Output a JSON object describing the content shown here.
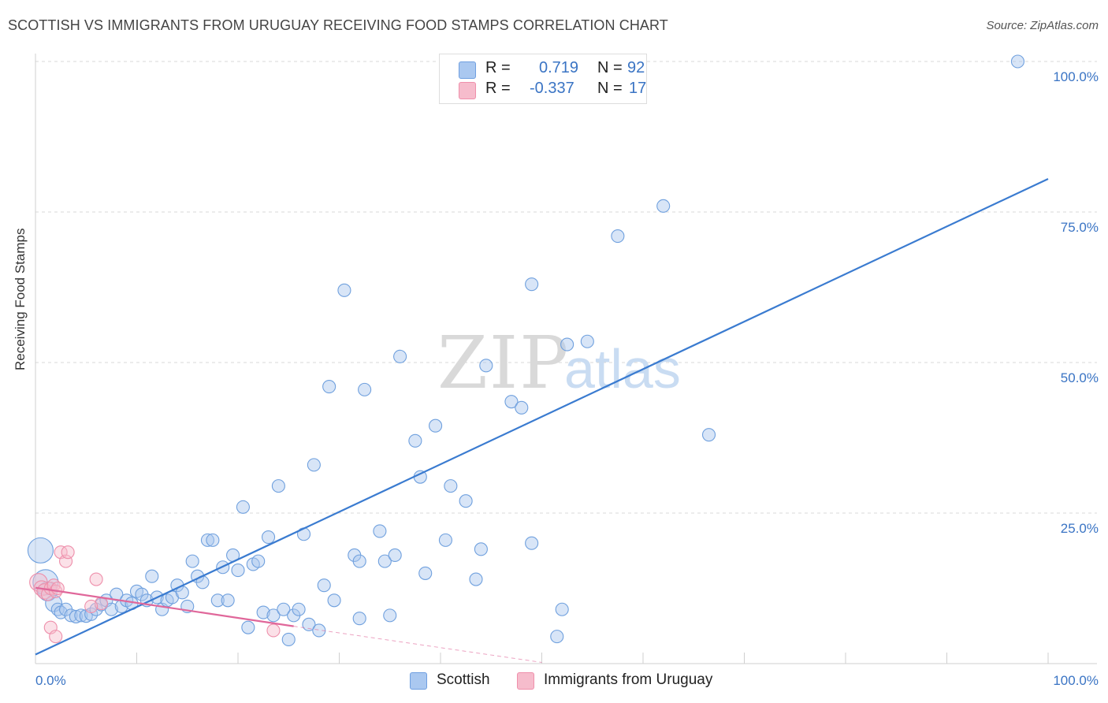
{
  "header": {
    "title": "SCOTTISH VS IMMIGRANTS FROM URUGUAY RECEIVING FOOD STAMPS CORRELATION CHART",
    "source": "Source: ZipAtlas.com"
  },
  "watermark": {
    "zip": "ZIP",
    "atlas": "atlas"
  },
  "legend": {
    "rows": [
      {
        "r_label": "R =",
        "r_value": "0.719",
        "n_label": "N =",
        "n_value": "92",
        "color": "#aac8f0",
        "border": "#6f9fe0"
      },
      {
        "r_label": "R =",
        "r_value": "-0.337",
        "n_label": "N =",
        "n_value": "17",
        "color": "#f6bccc",
        "border": "#ef8fab"
      }
    ]
  },
  "bottom_legend": {
    "series1": "Scottish",
    "series2": "Immigrants from Uruguay"
  },
  "chart_data": {
    "type": "scatter",
    "title": "SCOTTISH VS IMMIGRANTS FROM URUGUAY RECEIVING FOOD STAMPS CORRELATION CHART",
    "xlabel": "",
    "ylabel": "Receiving Food Stamps",
    "xlim": [
      0,
      100
    ],
    "ylim": [
      0,
      100
    ],
    "x_tick_labels": [
      "0.0%",
      "100.0%"
    ],
    "y_tick_labels": [
      "25.0%",
      "50.0%",
      "75.0%",
      "100.0%"
    ],
    "y_ticks": [
      25,
      50,
      75,
      100
    ],
    "grid": true,
    "series": [
      {
        "name": "Scottish",
        "color": "#6fa0de",
        "fill": "#a9c6ee",
        "trendline": {
          "x": [
            0,
            100
          ],
          "y": [
            1.5,
            80.5
          ],
          "color": "#3a7bd0"
        },
        "points": [
          [
            0.5,
            18.8,
            2
          ],
          [
            1.0,
            13.5,
            2
          ],
          [
            1.2,
            12.0,
            1.5
          ],
          [
            1.8,
            10.0,
            1.3
          ],
          [
            2.2,
            9.0,
            1
          ],
          [
            2.5,
            8.5,
            1
          ],
          [
            3.0,
            9.0,
            1
          ],
          [
            3.5,
            8.0,
            1
          ],
          [
            4.0,
            7.8,
            1
          ],
          [
            4.5,
            8.0,
            1
          ],
          [
            5.0,
            7.9,
            1
          ],
          [
            5.5,
            8.2,
            1
          ],
          [
            6.0,
            9.0,
            1
          ],
          [
            6.5,
            9.8,
            1
          ],
          [
            7.0,
            10.5,
            1
          ],
          [
            7.5,
            9.0,
            1
          ],
          [
            8.0,
            11.5,
            1
          ],
          [
            8.5,
            9.5,
            1
          ],
          [
            9.0,
            10.5,
            1
          ],
          [
            9.5,
            10.0,
            1
          ],
          [
            10.0,
            12.0,
            1
          ],
          [
            10.5,
            11.5,
            1
          ],
          [
            11.0,
            10.5,
            1
          ],
          [
            11.5,
            14.5,
            1
          ],
          [
            12.0,
            11.0,
            1
          ],
          [
            12.5,
            9.0,
            1
          ],
          [
            13.0,
            10.5,
            1
          ],
          [
            13.5,
            11.0,
            1
          ],
          [
            14.0,
            13.0,
            1
          ],
          [
            14.5,
            11.8,
            1
          ],
          [
            15.0,
            9.5,
            1
          ],
          [
            15.5,
            17.0,
            1
          ],
          [
            16.0,
            14.5,
            1
          ],
          [
            16.5,
            13.5,
            1
          ],
          [
            17.0,
            20.5,
            1
          ],
          [
            17.5,
            20.5,
            1
          ],
          [
            18.0,
            10.5,
            1
          ],
          [
            18.5,
            16.0,
            1
          ],
          [
            19.0,
            10.5,
            1
          ],
          [
            19.5,
            18.0,
            1
          ],
          [
            20.0,
            15.5,
            1
          ],
          [
            20.5,
            26.0,
            1
          ],
          [
            21.0,
            6.0,
            1
          ],
          [
            21.5,
            16.5,
            1
          ],
          [
            22.0,
            17.0,
            1
          ],
          [
            22.5,
            8.5,
            1
          ],
          [
            23.0,
            21.0,
            1
          ],
          [
            23.5,
            8.0,
            1
          ],
          [
            24.0,
            29.5,
            1
          ],
          [
            24.5,
            9.0,
            1
          ],
          [
            25.0,
            4.0,
            1
          ],
          [
            25.5,
            8.0,
            1
          ],
          [
            26.0,
            9.0,
            1
          ],
          [
            26.5,
            21.5,
            1
          ],
          [
            27.0,
            6.5,
            1
          ],
          [
            27.5,
            33.0,
            1
          ],
          [
            28.0,
            5.5,
            1
          ],
          [
            28.5,
            13.0,
            1
          ],
          [
            29.0,
            46.0,
            1
          ],
          [
            29.5,
            10.5,
            1
          ],
          [
            30.5,
            62.0,
            1
          ],
          [
            32.0,
            7.5,
            1
          ],
          [
            31.5,
            18.0,
            1
          ],
          [
            32.0,
            17.0,
            1
          ],
          [
            32.5,
            45.5,
            1
          ],
          [
            34.0,
            22.0,
            1
          ],
          [
            34.5,
            17.0,
            1
          ],
          [
            35.0,
            8.0,
            1
          ],
          [
            35.5,
            18.0,
            1
          ],
          [
            36.0,
            51.0,
            1
          ],
          [
            37.5,
            37.0,
            1
          ],
          [
            38.0,
            31.0,
            1
          ],
          [
            38.5,
            15.0,
            1
          ],
          [
            39.5,
            39.5,
            1
          ],
          [
            40.5,
            20.5,
            1
          ],
          [
            41.0,
            29.5,
            1
          ],
          [
            42.5,
            27.0,
            1
          ],
          [
            43.5,
            14.0,
            1
          ],
          [
            44.0,
            19.0,
            1
          ],
          [
            44.5,
            49.5,
            1
          ],
          [
            47.0,
            43.5,
            1
          ],
          [
            48.0,
            42.5,
            1
          ],
          [
            49.0,
            63.0,
            1
          ],
          [
            49.0,
            20.0,
            1
          ],
          [
            51.5,
            4.5,
            1
          ],
          [
            52.0,
            9.0,
            1
          ],
          [
            52.5,
            53.0,
            1
          ],
          [
            54.5,
            53.5,
            1
          ],
          [
            57.5,
            71.0,
            1
          ],
          [
            62.0,
            76.0,
            1
          ],
          [
            66.5,
            38.0,
            1
          ],
          [
            97.0,
            100.0,
            1
          ]
        ]
      },
      {
        "name": "Immigrants from Uruguay",
        "color": "#ee8fab",
        "fill": "#f6bccc",
        "trendline": {
          "x": [
            0,
            25.5
          ],
          "y": [
            12.6,
            6.2
          ],
          "color": "#e0679a",
          "dashed_to": [
            50,
            0.2
          ]
        },
        "points": [
          [
            0.3,
            13.5,
            1.4
          ],
          [
            0.6,
            12.5,
            1.2
          ],
          [
            0.9,
            12.0,
            1.2
          ],
          [
            1.2,
            11.5,
            1
          ],
          [
            1.5,
            12.5,
            1
          ],
          [
            1.8,
            13.0,
            1
          ],
          [
            2.0,
            12.0,
            1
          ],
          [
            2.2,
            12.5,
            1
          ],
          [
            2.5,
            18.5,
            1
          ],
          [
            3.0,
            17.0,
            1
          ],
          [
            3.2,
            18.5,
            1
          ],
          [
            1.5,
            6.0,
            1
          ],
          [
            2.0,
            4.5,
            1
          ],
          [
            6.0,
            14.0,
            1
          ],
          [
            6.5,
            10.0,
            1
          ],
          [
            5.5,
            9.5,
            1
          ],
          [
            23.5,
            5.5,
            1
          ]
        ]
      }
    ]
  }
}
